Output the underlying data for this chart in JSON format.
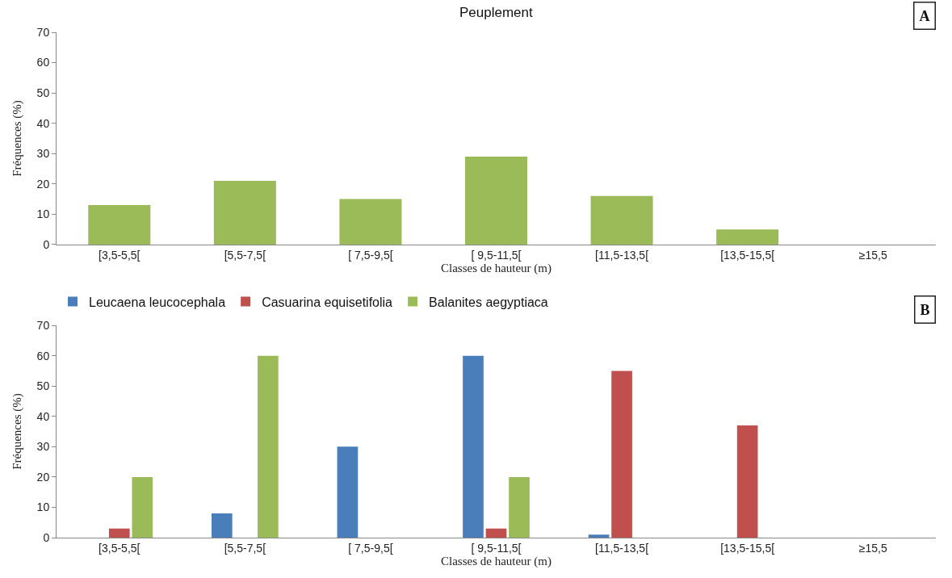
{
  "chart_data": [
    {
      "type": "bar",
      "title": "Peuplement",
      "xlabel": "Classes de hauteur (m)",
      "ylabel": "Fréquences (%)",
      "categories": [
        "[3,5-5,5[",
        "[5,5-7,5[",
        "[ 7,5-9,5[",
        "[ 9,5-11,5[",
        "[11,5-13,5[",
        "[13,5-15,5[",
        "≥15,5"
      ],
      "values": [
        13,
        21,
        15,
        29,
        16,
        5,
        0
      ],
      "color": "#9bbb59",
      "ylim": [
        0,
        70
      ],
      "yticks": [
        0,
        10,
        20,
        30,
        40,
        50,
        60,
        70
      ],
      "annotations": [
        "A"
      ]
    },
    {
      "type": "bar",
      "xlabel": "Classes de hauteur (m)",
      "ylabel": "Fréquences (%)",
      "categories": [
        "[3,5-5,5[",
        "[5,5-7,5[",
        "[ 7,5-9,5[",
        "[ 9,5-11,5[",
        "[11,5-13,5[",
        "[13,5-15,5[",
        "≥15,5"
      ],
      "series": [
        {
          "name": "Leucaena leucocephala",
          "color": "#4a7ebb",
          "values": [
            0,
            8,
            30,
            60,
            1,
            0,
            0
          ]
        },
        {
          "name": "Casuarina equisetifolia",
          "color": "#c0504d",
          "values": [
            3,
            0,
            0,
            3,
            55,
            37,
            0
          ]
        },
        {
          "name": "Balanites aegyptiaca",
          "color": "#9bbb59",
          "values": [
            20,
            60,
            0,
            20,
            0,
            0,
            0
          ]
        }
      ],
      "ylim": [
        0,
        70
      ],
      "yticks": [
        0,
        10,
        20,
        30,
        40,
        50,
        60,
        70
      ],
      "legend": "top",
      "annotations": [
        "B"
      ]
    }
  ]
}
